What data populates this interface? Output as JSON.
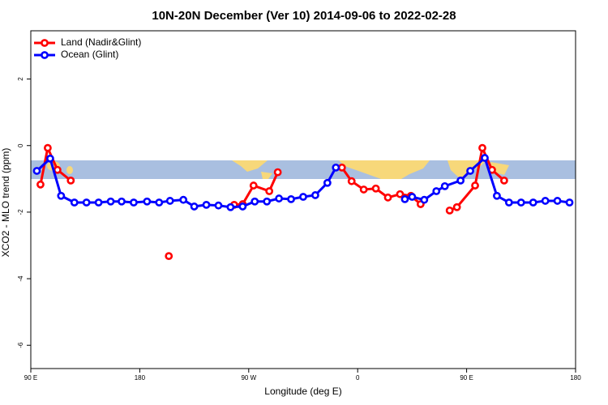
{
  "chart_data": {
    "type": "line",
    "title": "10N-20N December (Ver 10)   2014-09-06 to 2022-02-28",
    "x_label": "Longitude (deg E)",
    "y_label": "XCO2 - MLO trend (ppm)",
    "xlim": [
      90,
      540
    ],
    "xticks": [
      {
        "value": 90,
        "label": "90 E"
      },
      180,
      {
        "value": 270,
        "label": "90 W"
      },
      {
        "value": 360,
        "label": "0"
      },
      {
        "value": 450,
        "label": "90 E"
      },
      {
        "value": 540,
        "label": "180"
      }
    ],
    "ylim": [
      -6.7,
      3.45
    ],
    "yticks": [
      -6,
      -4,
      -2,
      0,
      2
    ],
    "legend": "top-left",
    "series": [
      {
        "name": "Land (Nadir&Glint)",
        "color": "#ff0000",
        "x": [
          98,
          104,
          112,
          123,
          null,
          204,
          null,
          258,
          265,
          274,
          287,
          294,
          null,
          347,
          355,
          365,
          375,
          385,
          395,
          404,
          412,
          null,
          436,
          442,
          457,
          463,
          471,
          481
        ],
        "values": [
          -1.17,
          -0.07,
          -0.73,
          -1.05,
          null,
          -3.32,
          null,
          -1.78,
          -1.76,
          -1.2,
          -1.37,
          -0.8,
          null,
          -0.66,
          -1.07,
          -1.32,
          -1.29,
          -1.56,
          -1.46,
          -1.51,
          -1.76,
          null,
          -1.95,
          -1.85,
          -1.2,
          -0.07,
          -0.73,
          -1.05
        ]
      },
      {
        "name": "Ocean (Glint)",
        "color": "#0000ff",
        "x": [
          95,
          106,
          115,
          126,
          136,
          146,
          156,
          165,
          175,
          186,
          196,
          205,
          216,
          225,
          235,
          245,
          255,
          265,
          275,
          285,
          295,
          305,
          315,
          325,
          335,
          342,
          null,
          399,
          405,
          415,
          425,
          432,
          445,
          453,
          465,
          475,
          485,
          495,
          505,
          515,
          525,
          535
        ],
        "values": [
          -0.76,
          -0.39,
          -1.51,
          -1.71,
          -1.71,
          -1.71,
          -1.68,
          -1.68,
          -1.71,
          -1.68,
          -1.71,
          -1.66,
          -1.63,
          -1.83,
          -1.78,
          -1.8,
          -1.85,
          -1.83,
          -1.68,
          -1.68,
          -1.59,
          -1.61,
          -1.54,
          -1.49,
          -1.12,
          -0.66,
          null,
          -1.61,
          -1.54,
          -1.63,
          -1.37,
          -1.22,
          -1.05,
          -0.76,
          -0.37,
          -1.51,
          -1.71,
          -1.71,
          -1.71,
          -1.66,
          -1.66,
          -1.71
        ]
      }
    ]
  }
}
